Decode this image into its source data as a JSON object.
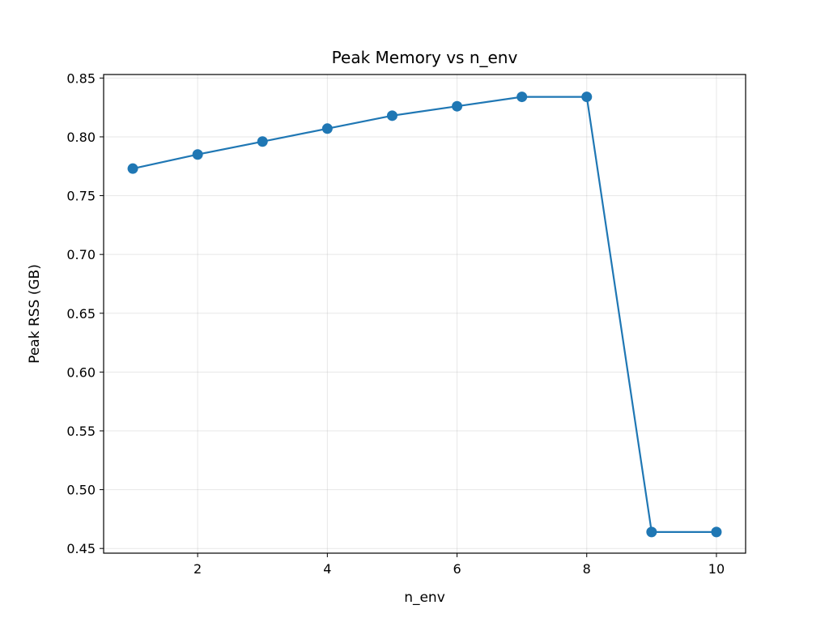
{
  "chart_data": {
    "type": "line",
    "title": "Peak Memory vs n_env",
    "xlabel": "n_env",
    "ylabel": "Peak RSS (GB)",
    "x": [
      1,
      2,
      3,
      4,
      5,
      6,
      7,
      8,
      9,
      10
    ],
    "series": [
      {
        "values": [
          0.773,
          0.785,
          0.796,
          0.807,
          0.818,
          0.826,
          0.834,
          0.834,
          0.464,
          0.464
        ],
        "color": "#1f77b4"
      }
    ],
    "xlim": [
      0.55,
      10.45
    ],
    "ylim": [
      0.446,
      0.853
    ],
    "xticks": [
      2,
      4,
      6,
      8,
      10
    ],
    "yticks": [
      0.45,
      0.5,
      0.55,
      0.6,
      0.65,
      0.7,
      0.75,
      0.8,
      0.85
    ],
    "ytick_labels": [
      "0.45",
      "0.50",
      "0.55",
      "0.60",
      "0.65",
      "0.70",
      "0.75",
      "0.80",
      "0.85"
    ],
    "grid": true,
    "marker": "circle"
  }
}
